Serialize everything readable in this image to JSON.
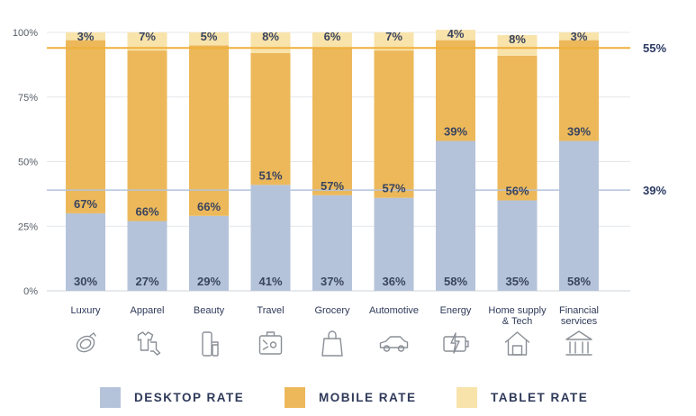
{
  "chart_data": {
    "type": "bar",
    "stacked": true,
    "categories": [
      "Luxury",
      "Apparel",
      "Beauty",
      "Travel",
      "Grocery",
      "Automotive",
      "Energy",
      "Home supply & Tech",
      "Financial services"
    ],
    "category_label_lines": [
      [
        "Luxury"
      ],
      [
        "Apparel"
      ],
      [
        "Beauty"
      ],
      [
        "Travel"
      ],
      [
        "Grocery"
      ],
      [
        "Automotive"
      ],
      [
        "Energy"
      ],
      [
        "Home supply",
        "& Tech"
      ],
      [
        "Financial",
        "services"
      ]
    ],
    "category_icons": [
      "ring-icon",
      "clothing-icon",
      "cosmetics-icon",
      "suitcase-icon",
      "shopping-bag-icon",
      "car-icon",
      "battery-charge-icon",
      "house-icon",
      "bank-icon"
    ],
    "series": [
      {
        "name": "DESKTOP RATE",
        "color": "#b5c3da",
        "values": [
          30,
          27,
          29,
          41,
          37,
          36,
          58,
          35,
          58
        ],
        "labels": [
          "30%",
          "27%",
          "29%",
          "41%",
          "37%",
          "36%",
          "58%",
          "35%",
          "58%"
        ]
      },
      {
        "name": "MOBILE RATE",
        "color": "#ecb85a",
        "values": [
          67,
          66,
          66,
          51,
          57,
          57,
          39,
          56,
          39
        ],
        "labels": [
          "67%",
          "66%",
          "66%",
          "51%",
          "57%",
          "57%",
          "39%",
          "56%",
          "39%"
        ]
      },
      {
        "name": "TABLET RATE",
        "color": "#f8e3ab",
        "values": [
          3,
          7,
          5,
          8,
          6,
          7,
          4,
          8,
          3
        ],
        "labels": [
          "3%",
          "7%",
          "5%",
          "8%",
          "6%",
          "7%",
          "4%",
          "8%",
          "3%"
        ]
      }
    ],
    "yticks": [
      "0%",
      "25%",
      "50%",
      "75%",
      "100%"
    ],
    "ylim": [
      0,
      100
    ],
    "reference_lines": [
      {
        "value": 94,
        "label": "55%",
        "color": "#f0b03c"
      },
      {
        "value": 39,
        "label": "39%",
        "color": "#b5c3da"
      }
    ],
    "legend_position": "bottom",
    "grid": "horizontal"
  }
}
